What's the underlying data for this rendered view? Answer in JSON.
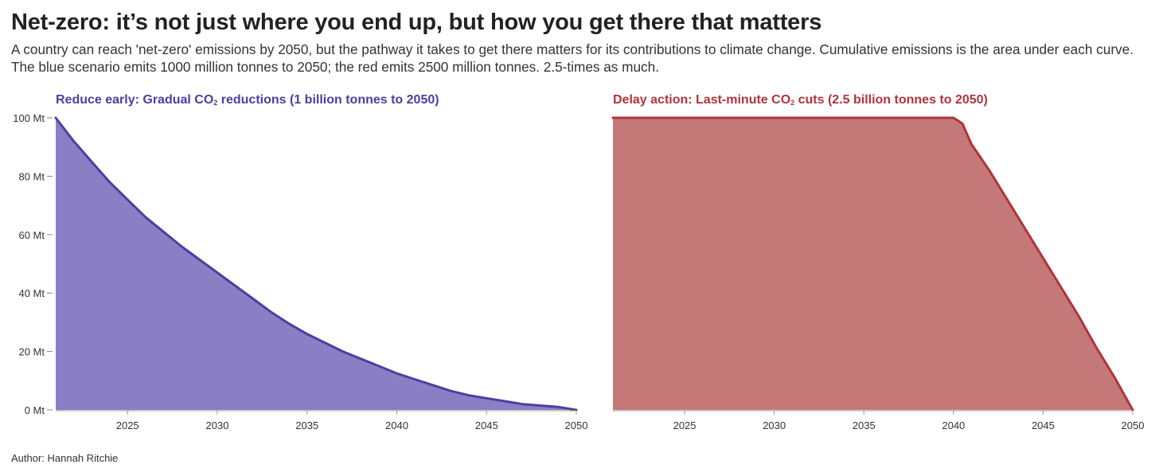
{
  "headline": "Net-zero: it’s not just where you end up, but how you get there that matters",
  "subtitle": "A country can reach 'net-zero' emissions by 2050, but the pathway it takes to get there matters for its contributions to climate change. Cumulative emissions is the area under each curve. The blue scenario emits 1000 million tonnes to 2050; the red emits 2500 million tonnes. 2.5-times as much.",
  "footer": "Author: Hannah Ritchie",
  "colors": {
    "blue_line": "#4b3fa0",
    "blue_fill": "#8a7fc5",
    "red_line": "#b0343a",
    "red_fill": "#c47878"
  },
  "chart_data": [
    {
      "type": "area",
      "title_parts": [
        "Reduce early: Gradual CO",
        "2",
        " reductions (1 billion tonnes to 2050)"
      ],
      "color": "blue",
      "y_ticks": [
        0,
        20,
        40,
        60,
        80,
        100
      ],
      "y_tick_labels": [
        "0 Mt",
        "20 Mt",
        "40 Mt",
        "60 Mt",
        "80 Mt",
        "100 Mt"
      ],
      "ylim": [
        0,
        100
      ],
      "xlim": [
        2021,
        2050
      ],
      "x_ticks": [
        2025,
        2030,
        2035,
        2040,
        2045,
        2050
      ],
      "x_tick_labels": [
        "2025",
        "2030",
        "2035",
        "2040",
        "2045",
        "2050"
      ],
      "x": [
        2021,
        2022,
        2023,
        2024,
        2025,
        2026,
        2027,
        2028,
        2029,
        2030,
        2031,
        2032,
        2033,
        2034,
        2035,
        2036,
        2037,
        2038,
        2039,
        2040,
        2041,
        2042,
        2043,
        2044,
        2045,
        2046,
        2047,
        2048,
        2049,
        2050
      ],
      "y": [
        100,
        92,
        85,
        78,
        72,
        66,
        61,
        56,
        51.5,
        47,
        42.5,
        38,
        33.5,
        29.5,
        26,
        23,
        20,
        17.5,
        15,
        12.5,
        10.5,
        8.5,
        6.5,
        5,
        4,
        3,
        2,
        1.5,
        1,
        0
      ]
    },
    {
      "type": "area",
      "title_parts": [
        "Delay action: Last-minute CO",
        "2",
        " cuts (2.5 billion tonnes to 2050)"
      ],
      "color": "red",
      "y_ticks": [
        0,
        20,
        40,
        60,
        80,
        100
      ],
      "y_tick_labels": [],
      "ylim": [
        0,
        100
      ],
      "xlim": [
        2021,
        2050
      ],
      "x_ticks": [
        2025,
        2030,
        2035,
        2040,
        2045,
        2050
      ],
      "x_tick_labels": [
        "2025",
        "2030",
        "2035",
        "2040",
        "2045",
        "2050"
      ],
      "x": [
        2021,
        2025,
        2030,
        2035,
        2040,
        2040.5,
        2041,
        2042,
        2043,
        2044,
        2045,
        2046,
        2047,
        2048,
        2049,
        2050
      ],
      "y": [
        100,
        100,
        100,
        100,
        100,
        98,
        91,
        82,
        72,
        62,
        52,
        42,
        32,
        21,
        11,
        0
      ]
    }
  ]
}
